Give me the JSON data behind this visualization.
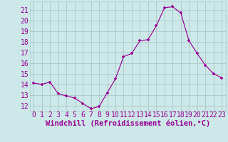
{
  "x": [
    0,
    1,
    2,
    3,
    4,
    5,
    6,
    7,
    8,
    9,
    10,
    11,
    12,
    13,
    14,
    15,
    16,
    17,
    18,
    19,
    20,
    21,
    22,
    23
  ],
  "y": [
    14.1,
    14.0,
    14.2,
    13.1,
    12.9,
    12.7,
    12.2,
    11.7,
    11.9,
    13.2,
    14.5,
    16.6,
    16.9,
    18.1,
    18.2,
    19.5,
    21.2,
    21.3,
    20.7,
    18.1,
    16.9,
    15.8,
    15.0,
    14.6
  ],
  "line_color": "#990099",
  "bg_color": "#cce8e8",
  "grid_color": "#aac8c8",
  "xlabel": "Windchill (Refroidissement éolien,°C)",
  "ylim": [
    11.5,
    21.8
  ],
  "xlim": [
    -0.5,
    23.5
  ],
  "yticks": [
    12,
    13,
    14,
    15,
    16,
    17,
    18,
    19,
    20,
    21
  ],
  "xticks": [
    0,
    1,
    2,
    3,
    4,
    5,
    6,
    7,
    8,
    9,
    10,
    11,
    12,
    13,
    14,
    15,
    16,
    17,
    18,
    19,
    20,
    21,
    22,
    23
  ],
  "label_color": "#990099",
  "label_fontsize": 7.5,
  "tick_fontsize": 7
}
